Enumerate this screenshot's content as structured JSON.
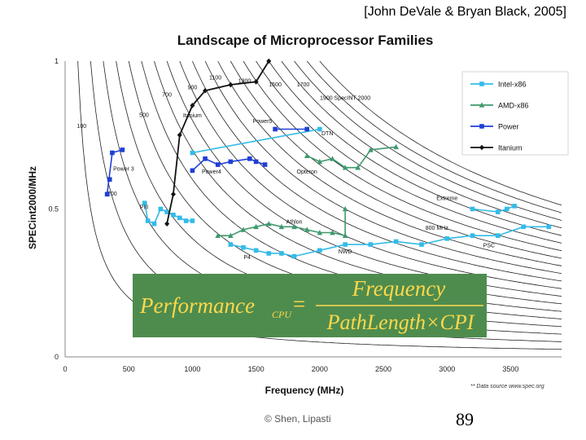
{
  "slide": {
    "citation": "[John DeVale & Bryan Black, 2005]",
    "copyright": "© Shen, Lipasti",
    "page_number": "89"
  },
  "formula": {
    "lhs": "Performance",
    "lhs_sub": "CPU",
    "equals": "=",
    "numerator": "Frequency",
    "denominator": "PathLength×CPI",
    "box_color": "#4e8c4e",
    "text_color": "#ffd84a"
  },
  "chart_data": {
    "type": "line",
    "title": "Landscape of Microprocessor Families",
    "xlabel": "Frequency (MHz)",
    "ylabel": "SPECint2000/MHz",
    "xlim": [
      0,
      3900
    ],
    "ylim": [
      0,
      1
    ],
    "x_ticks": [
      0,
      500,
      1000,
      1500,
      2000,
      2500,
      3000,
      3500
    ],
    "y_ticks": [
      0,
      0.5,
      1
    ],
    "y_tick_labels": [
      "0",
      "0.5",
      "1"
    ],
    "grid": false,
    "legend_position": "top-right",
    "data_source_note": "** Data source www.spec.org",
    "iso_performance_curves": {
      "values": [
        100,
        200,
        300,
        400,
        500,
        600,
        700,
        800,
        900,
        1000,
        1100,
        1200,
        1300,
        1400,
        1500,
        1600,
        1700,
        1800,
        1900,
        2000
      ],
      "labels": [
        {
          "label": "100",
          "x": 130
        },
        {
          "label": "200",
          "x": 370
        },
        {
          "label": "500",
          "x": 620
        },
        {
          "label": "700",
          "x": 800
        },
        {
          "label": "900",
          "x": 1000
        },
        {
          "label": "1100",
          "x": 1180
        },
        {
          "label": "1300",
          "x": 1410
        },
        {
          "label": "1500",
          "x": 1650
        },
        {
          "label": "1700",
          "x": 1870
        },
        {
          "label": "1900 SpecINT 2000",
          "x": 2200
        }
      ]
    },
    "series": [
      {
        "name": "Intel-x86",
        "color": "#33bbe8",
        "marker": "square",
        "points": [
          [
            625,
            0.52
          ],
          [
            650,
            0.46
          ],
          [
            700,
            0.45
          ],
          [
            750,
            0.5
          ],
          [
            800,
            0.49
          ],
          [
            850,
            0.48
          ],
          [
            900,
            0.47
          ],
          [
            950,
            0.46
          ],
          [
            1000,
            0.46
          ],
          [
            1000,
            0.69
          ],
          [
            2000,
            0.77
          ],
          [
            1300,
            0.38
          ],
          [
            1400,
            0.37
          ],
          [
            1500,
            0.36
          ],
          [
            1600,
            0.35
          ],
          [
            1700,
            0.35
          ],
          [
            1800,
            0.34
          ],
          [
            2000,
            0.36
          ],
          [
            2200,
            0.38
          ],
          [
            2400,
            0.38
          ],
          [
            2600,
            0.39
          ],
          [
            2800,
            0.38
          ],
          [
            3000,
            0.4
          ],
          [
            3200,
            0.41
          ],
          [
            3400,
            0.41
          ],
          [
            3600,
            0.44
          ],
          [
            3800,
            0.44
          ],
          [
            3200,
            0.5
          ],
          [
            3400,
            0.49
          ],
          [
            3470,
            0.5
          ],
          [
            3530,
            0.51
          ]
        ],
        "segments": [
          [
            0,
            9
          ],
          [
            9,
            11
          ],
          [
            11,
            27
          ],
          [
            27,
            31
          ]
        ]
      },
      {
        "name": "AMD-x86",
        "color": "#3f9a6e",
        "marker": "triangle",
        "points": [
          [
            1200,
            0.41
          ],
          [
            1300,
            0.41
          ],
          [
            1400,
            0.43
          ],
          [
            1500,
            0.44
          ],
          [
            1600,
            0.45
          ],
          [
            1700,
            0.44
          ],
          [
            1800,
            0.44
          ],
          [
            1900,
            0.43
          ],
          [
            2000,
            0.42
          ],
          [
            2100,
            0.42
          ],
          [
            2200,
            0.41
          ],
          [
            2200,
            0.5
          ],
          [
            1900,
            0.68
          ],
          [
            2000,
            0.66
          ],
          [
            2100,
            0.67
          ],
          [
            2200,
            0.64
          ],
          [
            2300,
            0.64
          ],
          [
            2400,
            0.7
          ],
          [
            2600,
            0.71
          ]
        ],
        "segments": [
          [
            0,
            12
          ],
          [
            12,
            19
          ]
        ]
      },
      {
        "name": "Power",
        "color": "#1f3fd6",
        "marker": "square",
        "points": [
          [
            330,
            0.55
          ],
          [
            370,
            0.69
          ],
          [
            450,
            0.7
          ],
          [
            350,
            0.6
          ],
          [
            1000,
            0.63
          ],
          [
            1100,
            0.67
          ],
          [
            1200,
            0.65
          ],
          [
            1300,
            0.66
          ],
          [
            1450,
            0.67
          ],
          [
            1500,
            0.66
          ],
          [
            1570,
            0.65
          ],
          [
            1650,
            0.77
          ],
          [
            1900,
            0.77
          ]
        ],
        "segments": [
          [
            0,
            3
          ],
          [
            4,
            11
          ],
          [
            11,
            13
          ]
        ]
      },
      {
        "name": "Itanium",
        "color": "#111111",
        "marker": "diamond",
        "points": [
          [
            800,
            0.45
          ],
          [
            850,
            0.55
          ],
          [
            900,
            0.75
          ],
          [
            1000,
            0.85
          ],
          [
            1100,
            0.9
          ],
          [
            1300,
            0.92
          ],
          [
            1500,
            0.93
          ],
          [
            1600,
            1.0
          ]
        ],
        "segments": [
          [
            0,
            8
          ]
        ]
      }
    ],
    "annotations": [
      {
        "text": "Power 3",
        "x": 460,
        "y": 0.63
      },
      {
        "text": "PIII",
        "x": 620,
        "y": 0.5
      },
      {
        "text": "Power4",
        "x": 1150,
        "y": 0.62
      },
      {
        "text": "Power5",
        "x": 1550,
        "y": 0.79
      },
      {
        "text": "Itanium",
        "x": 1000,
        "y": 0.81
      },
      {
        "text": "DTN",
        "x": 2060,
        "y": 0.75
      },
      {
        "text": "Opteron",
        "x": 1900,
        "y": 0.62
      },
      {
        "text": "Athlon",
        "x": 1800,
        "y": 0.45
      },
      {
        "text": "P4",
        "x": 1430,
        "y": 0.33
      },
      {
        "text": "NWD",
        "x": 2200,
        "y": 0.35
      },
      {
        "text": "800 MHz",
        "x": 2920,
        "y": 0.43
      },
      {
        "text": "Extreme",
        "x": 3000,
        "y": 0.53
      },
      {
        "text": "PSC",
        "x": 3330,
        "y": 0.37
      }
    ]
  }
}
